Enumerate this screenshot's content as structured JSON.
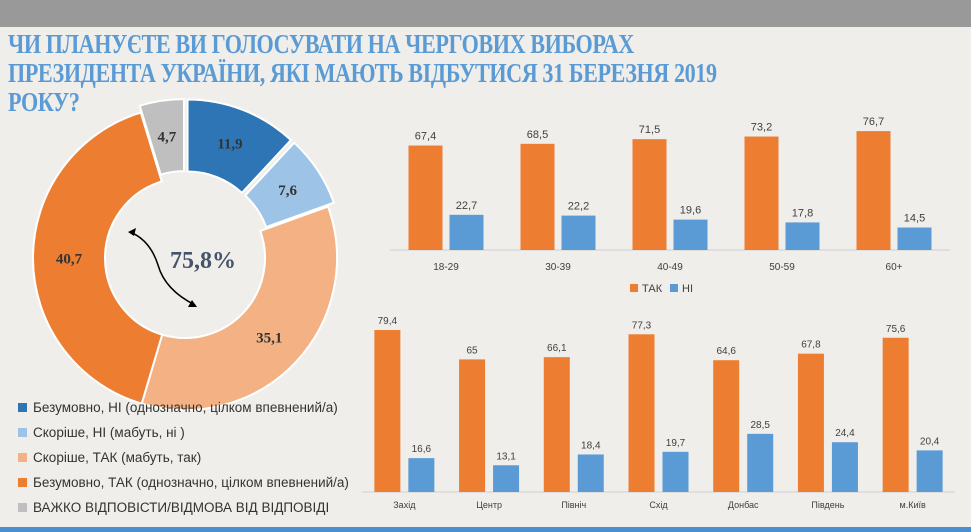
{
  "title": "ЧИ ПЛАНУЄТЕ ВИ ГОЛОСУВАТИ НА ЧЕРГОВИХ ВИБОРАХ ПРЕЗИДЕНТА УКРАЇНИ, ЯКІ МАЮТЬ ВІДБУТИСЯ 31 БЕРЕЗНЯ 2019 РОКУ?",
  "chart_data": [
    {
      "type": "pie",
      "variant": "donut",
      "center_label": "75,8%",
      "slices": [
        {
          "label": "Безумовно, НІ (однозначно, цілком впевнений/а)",
          "value": 11.9,
          "value_label": "11,9",
          "color": "#2e75b6"
        },
        {
          "label": "Скоріше, НІ (мабуть, ні )",
          "value": 7.6,
          "value_label": "7,6",
          "color": "#9dc3e6"
        },
        {
          "label": "Скоріше, ТАК (мабуть, так)",
          "value": 35.1,
          "value_label": "35,1",
          "color": "#f4b183"
        },
        {
          "label": "Безумовно, ТАК (однозначно, цілком впевнений/а)",
          "value": 40.7,
          "value_label": "40,7",
          "color": "#ed7d31"
        },
        {
          "label": "ВАЖКО ВІДПОВІСТИ/ВІДМОВА ВІД ВІДПОВІДІ",
          "value": 4.7,
          "value_label": "4,7",
          "color": "#bfbfbf"
        }
      ],
      "legend": "bottom-left"
    },
    {
      "type": "bar",
      "categories": [
        "18-29",
        "30-39",
        "40-49",
        "50-59",
        "60+"
      ],
      "series": [
        {
          "name": "ТАК",
          "color": "#ed7d31",
          "values": [
            67.4,
            68.5,
            71.5,
            73.2,
            76.7
          ],
          "labels": [
            "67,4",
            "68,5",
            "71,5",
            "73,2",
            "76,7"
          ]
        },
        {
          "name": "НІ",
          "color": "#5b9bd5",
          "values": [
            22.7,
            22.2,
            19.6,
            17.8,
            14.5
          ],
          "labels": [
            "22,7",
            "22,2",
            "19,6",
            "17,8",
            "14,5"
          ]
        }
      ],
      "ylim": [
        0,
        100
      ],
      "legend": "bottom"
    },
    {
      "type": "bar",
      "categories": [
        "Захід",
        "Центр",
        "Північ",
        "Схід",
        "Донбас",
        "Південь",
        "м.Київ"
      ],
      "series": [
        {
          "color": "#ed7d31",
          "values": [
            79.4,
            65,
            66.1,
            77.3,
            64.6,
            67.8,
            75.6
          ],
          "labels": [
            "79,4",
            "65",
            "66,1",
            "77,3",
            "64,6",
            "67,8",
            "75,6"
          ]
        },
        {
          "color": "#5b9bd5",
          "values": [
            16.6,
            13.1,
            18.4,
            19.7,
            28.5,
            24.4,
            20.4
          ],
          "labels": [
            "16,6",
            "13,1",
            "18,4",
            "19,7",
            "28,5",
            "24,4",
            "20,4"
          ]
        }
      ],
      "ylim": [
        0,
        100
      ]
    }
  ]
}
